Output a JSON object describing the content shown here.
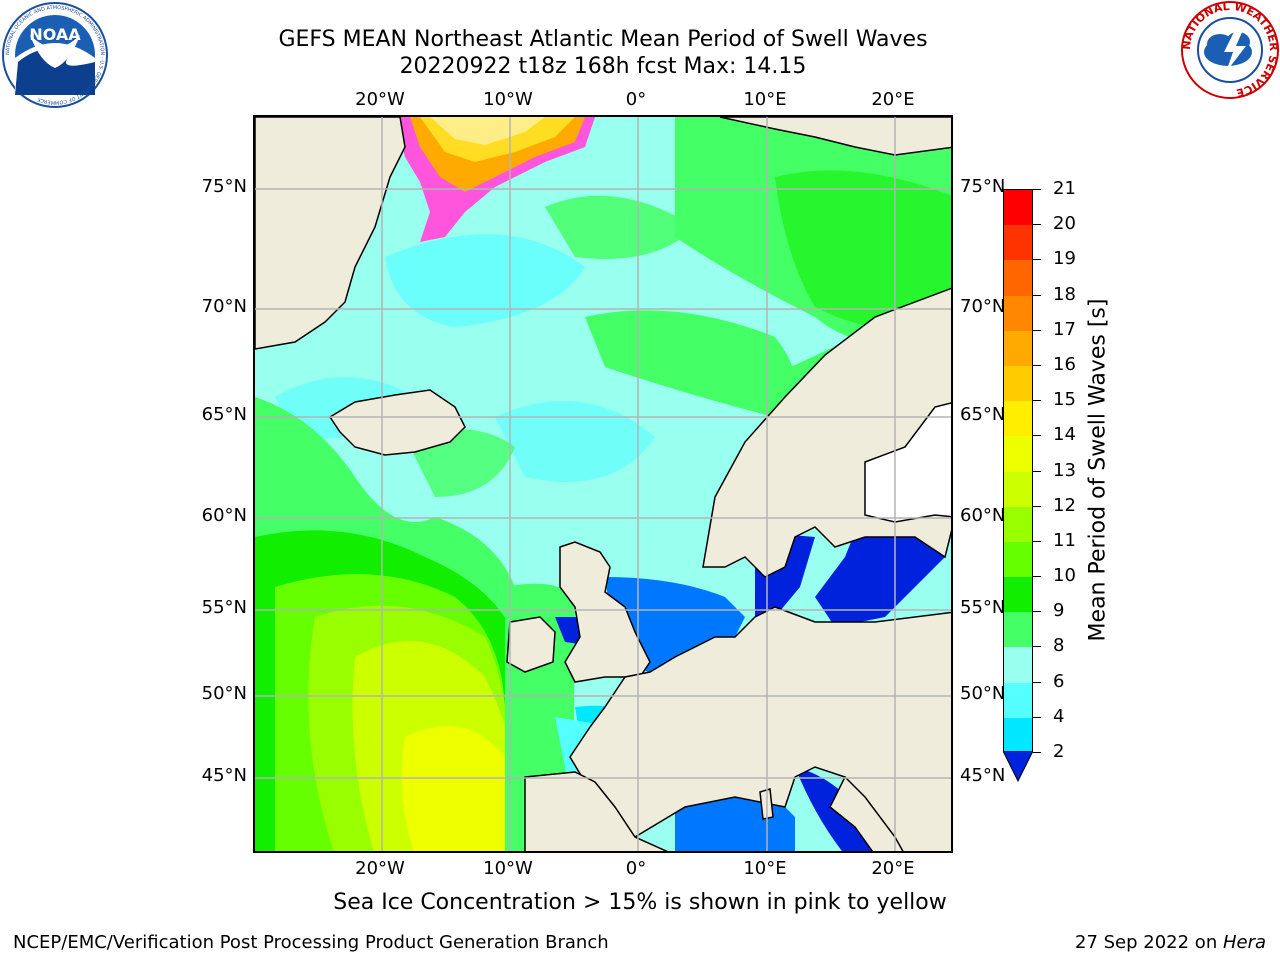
{
  "title": {
    "line1": "GEFS MEAN Northeast Atlantic Mean Period of Swell Waves",
    "line2": "20220922 t18z 168h fcst   Max: 14.15"
  },
  "map": {
    "lon_labels": [
      "20°W",
      "10°W",
      "0°",
      "10°E",
      "20°E"
    ],
    "lat_labels": [
      "75°N",
      "70°N",
      "65°N",
      "60°N",
      "55°N",
      "50°N",
      "45°N"
    ],
    "colors": {
      "land": "#efecdc",
      "grid": "#b4b4b4"
    }
  },
  "colorbar": {
    "title": "Mean Period of Swell Waves [s]",
    "ticks": [
      "21",
      "20",
      "19",
      "18",
      "17",
      "16",
      "15",
      "14",
      "13",
      "12",
      "11",
      "10",
      "9",
      "8",
      "6",
      "4",
      "2"
    ],
    "colors": [
      "#ff0000",
      "#ff3300",
      "#ff6600",
      "#ff8800",
      "#ffaa00",
      "#ffcc00",
      "#ffee00",
      "#eeff00",
      "#ccff00",
      "#99ff00",
      "#66ff00",
      "#11ee00",
      "#44ff66",
      "#99ffee",
      "#55ffff",
      "#00e8ff",
      "#0077ff"
    ],
    "extend_color": "#0022dd"
  },
  "notes": {
    "ice": "Sea Ice Concentration > 15% is shown in pink to yellow"
  },
  "footer": {
    "left": "NCEP/EMC/Verification Post Processing Product Generation Branch",
    "date": "27 Sep 2022 on ",
    "host": "Hera"
  },
  "logos": {
    "noaa": {
      "text": "NOAA",
      "ring": "NATIONAL OCEANIC AND ATMOSPHERIC ADMINISTRATION · U.S. DEPARTMENT OF COMMERCE"
    },
    "nws": {
      "ring": "NATIONAL WEATHER SERVICE"
    }
  }
}
